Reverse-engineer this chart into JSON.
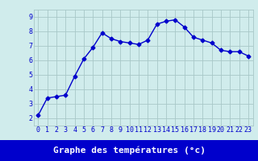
{
  "x": [
    0,
    1,
    2,
    3,
    4,
    5,
    6,
    7,
    8,
    9,
    10,
    11,
    12,
    13,
    14,
    15,
    16,
    17,
    18,
    19,
    20,
    21,
    22,
    23
  ],
  "y": [
    2.2,
    3.4,
    3.5,
    3.6,
    4.9,
    6.1,
    6.9,
    7.9,
    7.5,
    7.3,
    7.2,
    7.1,
    7.4,
    8.5,
    8.7,
    8.8,
    8.3,
    7.6,
    7.4,
    7.2,
    6.7,
    6.6,
    6.6,
    6.3
  ],
  "line_color": "#0000cc",
  "marker": "D",
  "marker_size": 2.5,
  "bg_color": "#d0ecec",
  "grid_color": "#a8c8c8",
  "xlabel": "Graphe des températures (°c)",
  "xlabel_color": "#ffffff",
  "xlabel_bg": "#0000cc",
  "xlim": [
    -0.5,
    23.5
  ],
  "ylim": [
    1.5,
    9.5
  ],
  "yticks": [
    2,
    3,
    4,
    5,
    6,
    7,
    8,
    9
  ],
  "xticks": [
    0,
    1,
    2,
    3,
    4,
    5,
    6,
    7,
    8,
    9,
    10,
    11,
    12,
    13,
    14,
    15,
    16,
    17,
    18,
    19,
    20,
    21,
    22,
    23
  ],
  "tick_label_color": "#0000cc",
  "tick_label_fontsize": 6.0,
  "xlabel_fontsize": 8.0,
  "line_width": 1.0,
  "fig_width": 3.2,
  "fig_height": 2.0,
  "dpi": 100
}
